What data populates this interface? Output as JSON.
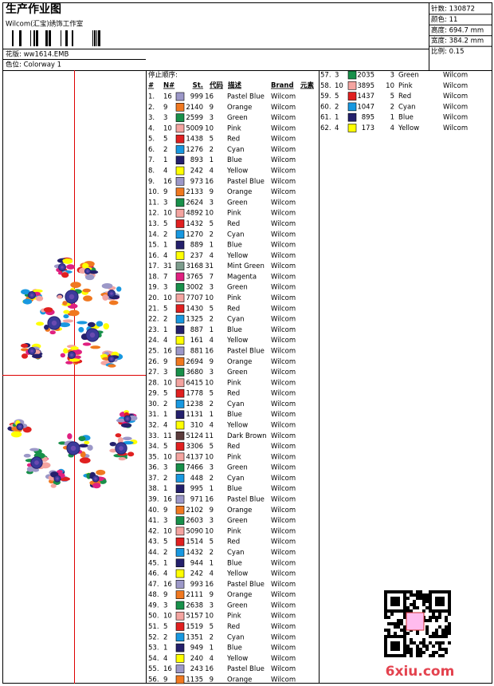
{
  "header": {
    "title": "生产作业图",
    "studio": "Wilcom(汇宝)绣饰工作室",
    "design": "花版: ww1614.EMB",
    "colorway": "色位: Colorway 1"
  },
  "info": [
    "针数: 130872",
    "颜色: 11",
    "高度: 694.7 mm",
    "宽度: 384.2 mm",
    "比例: 0.15"
  ],
  "table": {
    "title": "停止顺序:",
    "headers": [
      "#",
      "N#",
      "St.",
      "代码",
      "描述",
      "Brand",
      "元素"
    ],
    "rows": [
      [
        "1.",
        "16",
        "999",
        "16",
        "Pastel Blue",
        "Wilcom",
        "#9c98c8"
      ],
      [
        "2.",
        "9",
        "2140",
        "9",
        "Orange",
        "Wilcom",
        "#f07820"
      ],
      [
        "3.",
        "3",
        "2599",
        "3",
        "Green",
        "Wilcom",
        "#18904a"
      ],
      [
        "4.",
        "10",
        "5009",
        "10",
        "Pink",
        "Wilcom",
        "#f4a4a0"
      ],
      [
        "5.",
        "5",
        "1438",
        "5",
        "Red",
        "Wilcom",
        "#e02020"
      ],
      [
        "6.",
        "2",
        "1276",
        "2",
        "Cyan",
        "Wilcom",
        "#1898e0"
      ],
      [
        "7.",
        "1",
        "893",
        "1",
        "Blue",
        "Wilcom",
        "#24206c"
      ],
      [
        "8.",
        "4",
        "242",
        "4",
        "Yellow",
        "Wilcom",
        "#ffff00"
      ],
      [
        "9.",
        "16",
        "973",
        "16",
        "Pastel Blue",
        "Wilcom",
        "#9c98c8"
      ],
      [
        "10.",
        "9",
        "2133",
        "9",
        "Orange",
        "Wilcom",
        "#f07820"
      ],
      [
        "11.",
        "3",
        "2624",
        "3",
        "Green",
        "Wilcom",
        "#18904a"
      ],
      [
        "12.",
        "10",
        "4892",
        "10",
        "Pink",
        "Wilcom",
        "#f4a4a0"
      ],
      [
        "13.",
        "5",
        "1432",
        "5",
        "Red",
        "Wilcom",
        "#e02020"
      ],
      [
        "14.",
        "2",
        "1270",
        "2",
        "Cyan",
        "Wilcom",
        "#1898e0"
      ],
      [
        "15.",
        "1",
        "889",
        "1",
        "Blue",
        "Wilcom",
        "#24206c"
      ],
      [
        "16.",
        "4",
        "237",
        "4",
        "Yellow",
        "Wilcom",
        "#ffff00"
      ],
      [
        "17.",
        "31",
        "3168",
        "31",
        "Mint Green",
        "Wilcom",
        "#7c9c8c"
      ],
      [
        "18.",
        "7",
        "3765",
        "7",
        "Magenta",
        "Wilcom",
        "#e02080"
      ],
      [
        "19.",
        "3",
        "3002",
        "3",
        "Green",
        "Wilcom",
        "#18904a"
      ],
      [
        "20.",
        "10",
        "7707",
        "10",
        "Pink",
        "Wilcom",
        "#f4a4a0"
      ],
      [
        "21.",
        "5",
        "1430",
        "5",
        "Red",
        "Wilcom",
        "#e02020"
      ],
      [
        "22.",
        "2",
        "1325",
        "2",
        "Cyan",
        "Wilcom",
        "#1898e0"
      ],
      [
        "23.",
        "1",
        "887",
        "1",
        "Blue",
        "Wilcom",
        "#24206c"
      ],
      [
        "24.",
        "4",
        "161",
        "4",
        "Yellow",
        "Wilcom",
        "#ffff00"
      ],
      [
        "25.",
        "16",
        "881",
        "16",
        "Pastel Blue",
        "Wilcom",
        "#9c98c8"
      ],
      [
        "26.",
        "9",
        "2694",
        "9",
        "Orange",
        "Wilcom",
        "#f07820"
      ],
      [
        "27.",
        "3",
        "3680",
        "3",
        "Green",
        "Wilcom",
        "#18904a"
      ],
      [
        "28.",
        "10",
        "6415",
        "10",
        "Pink",
        "Wilcom",
        "#f4a4a0"
      ],
      [
        "29.",
        "5",
        "1778",
        "5",
        "Red",
        "Wilcom",
        "#e02020"
      ],
      [
        "30.",
        "2",
        "1238",
        "2",
        "Cyan",
        "Wilcom",
        "#1898e0"
      ],
      [
        "31.",
        "1",
        "1131",
        "1",
        "Blue",
        "Wilcom",
        "#24206c"
      ],
      [
        "32.",
        "4",
        "310",
        "4",
        "Yellow",
        "Wilcom",
        "#ffff00"
      ],
      [
        "33.",
        "11",
        "5124",
        "11",
        "Dark Brown",
        "Wilcom",
        "#5c3c3c"
      ],
      [
        "34.",
        "5",
        "3306",
        "5",
        "Red",
        "Wilcom",
        "#e02020"
      ],
      [
        "35.",
        "10",
        "4137",
        "10",
        "Pink",
        "Wilcom",
        "#f4a4a0"
      ],
      [
        "36.",
        "3",
        "7466",
        "3",
        "Green",
        "Wilcom",
        "#18904a"
      ],
      [
        "37.",
        "2",
        "448",
        "2",
        "Cyan",
        "Wilcom",
        "#1898e0"
      ],
      [
        "38.",
        "1",
        "995",
        "1",
        "Blue",
        "Wilcom",
        "#24206c"
      ],
      [
        "39.",
        "16",
        "971",
        "16",
        "Pastel Blue",
        "Wilcom",
        "#9c98c8"
      ],
      [
        "40.",
        "9",
        "2102",
        "9",
        "Orange",
        "Wilcom",
        "#f07820"
      ],
      [
        "41.",
        "3",
        "2603",
        "3",
        "Green",
        "Wilcom",
        "#18904a"
      ],
      [
        "42.",
        "10",
        "5090",
        "10",
        "Pink",
        "Wilcom",
        "#f4a4a0"
      ],
      [
        "43.",
        "5",
        "1514",
        "5",
        "Red",
        "Wilcom",
        "#e02020"
      ],
      [
        "44.",
        "2",
        "1432",
        "2",
        "Cyan",
        "Wilcom",
        "#1898e0"
      ],
      [
        "45.",
        "1",
        "944",
        "1",
        "Blue",
        "Wilcom",
        "#24206c"
      ],
      [
        "46.",
        "4",
        "242",
        "4",
        "Yellow",
        "Wilcom",
        "#ffff00"
      ],
      [
        "47.",
        "16",
        "993",
        "16",
        "Pastel Blue",
        "Wilcom",
        "#9c98c8"
      ],
      [
        "48.",
        "9",
        "2111",
        "9",
        "Orange",
        "Wilcom",
        "#f07820"
      ],
      [
        "49.",
        "3",
        "2638",
        "3",
        "Green",
        "Wilcom",
        "#18904a"
      ],
      [
        "50.",
        "10",
        "5157",
        "10",
        "Pink",
        "Wilcom",
        "#f4a4a0"
      ],
      [
        "51.",
        "5",
        "1519",
        "5",
        "Red",
        "Wilcom",
        "#e02020"
      ],
      [
        "52.",
        "2",
        "1351",
        "2",
        "Cyan",
        "Wilcom",
        "#1898e0"
      ],
      [
        "53.",
        "1",
        "949",
        "1",
        "Blue",
        "Wilcom",
        "#24206c"
      ],
      [
        "54.",
        "4",
        "240",
        "4",
        "Yellow",
        "Wilcom",
        "#ffff00"
      ],
      [
        "55.",
        "16",
        "243",
        "16",
        "Pastel Blue",
        "Wilcom",
        "#9c98c8"
      ],
      [
        "56.",
        "9",
        "1135",
        "9",
        "Orange",
        "Wilcom",
        "#f07820"
      ],
      [
        "57.",
        "3",
        "2035",
        "3",
        "Green",
        "Wilcom",
        "#18904a"
      ],
      [
        "58.",
        "10",
        "3895",
        "10",
        "Pink",
        "Wilcom",
        "#f4a4a0"
      ],
      [
        "59.",
        "5",
        "1437",
        "5",
        "Red",
        "Wilcom",
        "#e02020"
      ],
      [
        "60.",
        "2",
        "1047",
        "2",
        "Cyan",
        "Wilcom",
        "#1898e0"
      ],
      [
        "61.",
        "1",
        "895",
        "1",
        "Blue",
        "Wilcom",
        "#24206c"
      ],
      [
        "62.",
        "4",
        "173",
        "4",
        "Yellow",
        "Wilcom",
        "#ffff00"
      ]
    ]
  },
  "watermark": "6xiu.com"
}
